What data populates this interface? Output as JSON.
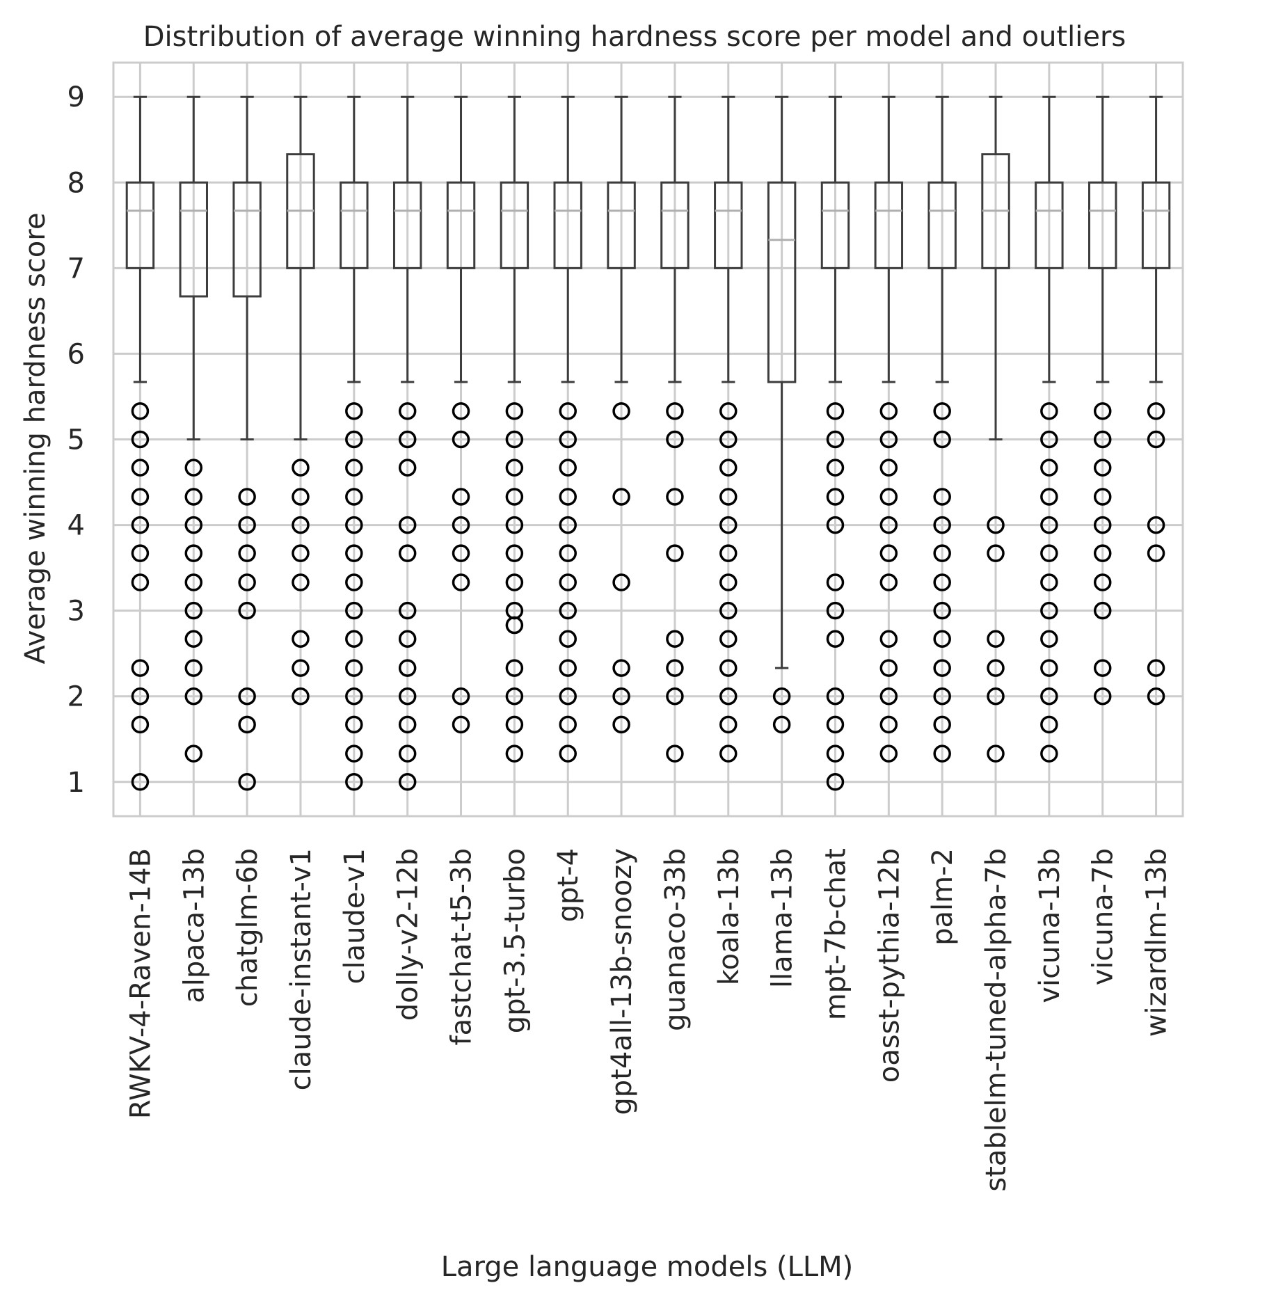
{
  "chart_data": {
    "type": "box",
    "title": "Distribution of average winning hardness score per model and outliers",
    "xlabel": "Large language models (LLM)",
    "ylabel": "Average winning hardness score",
    "ylim": [
      0.6,
      9.4
    ],
    "yticks": [
      1,
      2,
      3,
      4,
      5,
      6,
      7,
      8,
      9
    ],
    "grid": true,
    "colors": {
      "box": "#3d3d3d",
      "median": "#b0b0b0",
      "grid": "#cccccc",
      "outlier": "#000000"
    },
    "categories": [
      "RWKV-4-Raven-14B",
      "alpaca-13b",
      "chatglm-6b",
      "claude-instant-v1",
      "claude-v1",
      "dolly-v2-12b",
      "fastchat-t5-3b",
      "gpt-3.5-turbo",
      "gpt-4",
      "gpt4all-13b-snoozy",
      "guanaco-33b",
      "koala-13b",
      "llama-13b",
      "mpt-7b-chat",
      "oasst-pythia-12b",
      "palm-2",
      "stablelm-tuned-alpha-7b",
      "vicuna-13b",
      "vicuna-7b",
      "wizardlm-13b"
    ],
    "boxes": [
      {
        "whislo": 5.67,
        "q1": 7,
        "med": 7.67,
        "q3": 8,
        "whishi": 9,
        "fliers": [
          5.33,
          5,
          4.67,
          4.33,
          4,
          3.67,
          3.33,
          2.33,
          2,
          1.67,
          1
        ]
      },
      {
        "whislo": 5,
        "q1": 6.67,
        "med": 7.67,
        "q3": 8,
        "whishi": 9,
        "fliers": [
          4.67,
          4.33,
          4,
          3.67,
          3.33,
          3,
          2.67,
          2.33,
          2,
          1.33
        ]
      },
      {
        "whislo": 5,
        "q1": 6.67,
        "med": 7.67,
        "q3": 8,
        "whishi": 9,
        "fliers": [
          4.33,
          4,
          3.67,
          3.33,
          3,
          2,
          1.67,
          1
        ]
      },
      {
        "whislo": 5,
        "q1": 7,
        "med": 7.67,
        "q3": 8.33,
        "whishi": 9,
        "fliers": [
          4.67,
          4.33,
          4,
          3.67,
          3.33,
          2.67,
          2.33,
          2
        ]
      },
      {
        "whislo": 5.67,
        "q1": 7,
        "med": 7.67,
        "q3": 8,
        "whishi": 9,
        "fliers": [
          5.33,
          5,
          4.67,
          4.33,
          4,
          3.67,
          3.33,
          3,
          2.67,
          2.33,
          2,
          1.67,
          1.33,
          1
        ]
      },
      {
        "whislo": 5.67,
        "q1": 7,
        "med": 7.67,
        "q3": 8,
        "whishi": 9,
        "fliers": [
          5.33,
          5,
          4.67,
          4,
          3.67,
          3,
          2.67,
          2.33,
          2,
          1.67,
          1.33,
          1
        ]
      },
      {
        "whislo": 5.67,
        "q1": 7,
        "med": 7.67,
        "q3": 8,
        "whishi": 9,
        "fliers": [
          5.33,
          5,
          4.33,
          4,
          3.67,
          3.33,
          2,
          1.67
        ]
      },
      {
        "whislo": 5.67,
        "q1": 7,
        "med": 7.67,
        "q3": 8,
        "whishi": 9,
        "fliers": [
          5.33,
          5,
          4.67,
          4.33,
          4,
          3.67,
          3.33,
          3,
          2.83,
          2.33,
          2,
          1.67,
          1.33
        ]
      },
      {
        "whislo": 5.67,
        "q1": 7,
        "med": 7.67,
        "q3": 8,
        "whishi": 9,
        "fliers": [
          5.33,
          5,
          4.67,
          4.33,
          4,
          3.67,
          3.33,
          3,
          2.67,
          2.33,
          2,
          1.67,
          1.33
        ]
      },
      {
        "whislo": 5.67,
        "q1": 7,
        "med": 7.67,
        "q3": 8,
        "whishi": 9,
        "fliers": [
          5.33,
          4.33,
          3.33,
          2.33,
          2,
          1.67
        ]
      },
      {
        "whislo": 5.67,
        "q1": 7,
        "med": 7.67,
        "q3": 8,
        "whishi": 9,
        "fliers": [
          5.33,
          5,
          4.33,
          3.67,
          2.67,
          2.33,
          2,
          1.33
        ]
      },
      {
        "whislo": 5.67,
        "q1": 7,
        "med": 7.67,
        "q3": 8,
        "whishi": 9,
        "fliers": [
          5.33,
          5,
          4.67,
          4.33,
          4,
          3.67,
          3.33,
          3,
          2.67,
          2.33,
          2,
          1.67,
          1.33
        ]
      },
      {
        "whislo": 2.33,
        "q1": 5.67,
        "med": 7.33,
        "q3": 8,
        "whishi": 9,
        "fliers": [
          2,
          1.67
        ]
      },
      {
        "whislo": 5.67,
        "q1": 7,
        "med": 7.67,
        "q3": 8,
        "whishi": 9,
        "fliers": [
          5.33,
          5,
          4.67,
          4.33,
          4,
          3.33,
          3,
          2.67,
          2,
          1.67,
          1.33,
          1
        ]
      },
      {
        "whislo": 5.67,
        "q1": 7,
        "med": 7.67,
        "q3": 8,
        "whishi": 9,
        "fliers": [
          5.33,
          5,
          4.67,
          4.33,
          4,
          3.67,
          3.33,
          2.67,
          2.33,
          2,
          1.67,
          1.33
        ]
      },
      {
        "whislo": 5.67,
        "q1": 7,
        "med": 7.67,
        "q3": 8,
        "whishi": 9,
        "fliers": [
          5.33,
          5,
          4.33,
          4,
          3.67,
          3.33,
          3,
          2.67,
          2.33,
          2,
          1.67,
          1.33
        ]
      },
      {
        "whislo": 5,
        "q1": 7,
        "med": 7.67,
        "q3": 8.33,
        "whishi": 9,
        "fliers": [
          4,
          3.67,
          2.67,
          2.33,
          2,
          1.33
        ]
      },
      {
        "whislo": 5.67,
        "q1": 7,
        "med": 7.67,
        "q3": 8,
        "whishi": 9,
        "fliers": [
          5.33,
          5,
          4.67,
          4.33,
          4,
          3.67,
          3.33,
          3,
          2.67,
          2.33,
          2,
          1.67,
          1.33
        ]
      },
      {
        "whislo": 5.67,
        "q1": 7,
        "med": 7.67,
        "q3": 8,
        "whishi": 9,
        "fliers": [
          5.33,
          5,
          4.67,
          4.33,
          4,
          3.67,
          3.33,
          3,
          2.33,
          2
        ]
      },
      {
        "whislo": 5.67,
        "q1": 7,
        "med": 7.67,
        "q3": 8,
        "whishi": 9,
        "fliers": [
          5.33,
          5,
          4,
          3.67,
          2.33,
          2
        ]
      }
    ]
  }
}
